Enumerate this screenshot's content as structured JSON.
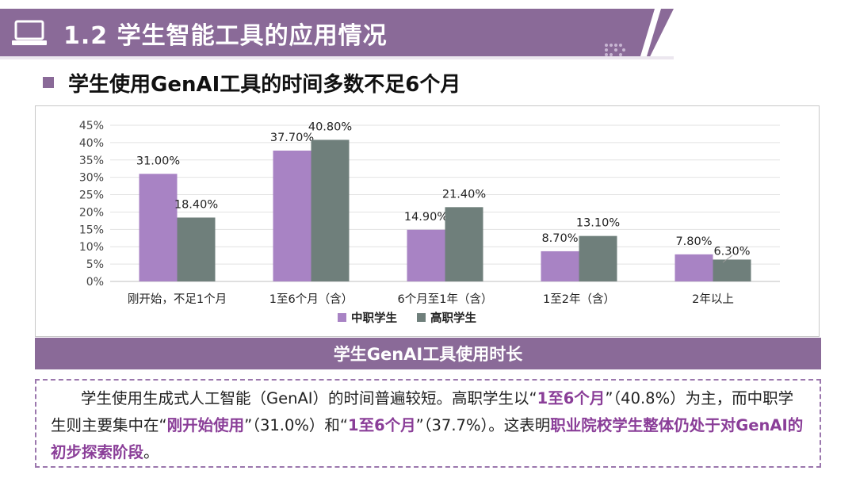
{
  "header": {
    "title": "1.2 学生智能工具的应用情况"
  },
  "section": {
    "title": "学生使用GenAI工具的时间多数不足6个月"
  },
  "caption": "学生GenAI工具使用时长",
  "description": {
    "p1": "学生使用生成式人工智能（GenAI）的时间普遍较短。高职学生以“",
    "e1": "1至6个月",
    "p2": "”（40.8%）为主，而中职学生则主要集中在“",
    "e2": "刚开始使用",
    "p3": "”（31.0%）和“",
    "e3": "1至6个月",
    "p4": "”（37.7%）。这表明",
    "e4": "职业院校学生整体仍处于对GenAI的初步探索阶段",
    "p5": "。"
  },
  "colors": {
    "accent": "#8a6a98",
    "series1": "#a883c4",
    "series2": "#6f7f7b"
  },
  "chart_data": {
    "type": "bar",
    "categories": [
      "刚开始，不足1个月",
      "1至6个月（含）",
      "6个月至1年（含）",
      "1至2年（含）",
      "2年以上"
    ],
    "series": [
      {
        "name": "中职学生",
        "values": [
          31.0,
          37.7,
          14.9,
          8.7,
          7.8
        ],
        "labels": [
          "31.00%",
          "37.70%",
          "14.90%",
          "8.70%",
          "7.80%"
        ]
      },
      {
        "name": "高职学生",
        "values": [
          18.4,
          40.8,
          21.4,
          13.1,
          6.3
        ],
        "labels": [
          "18.40%",
          "40.80%",
          "21.40%",
          "13.10%",
          "6.30%"
        ]
      }
    ],
    "yticks": [
      "0%",
      "5%",
      "10%",
      "15%",
      "20%",
      "25%",
      "30%",
      "35%",
      "40%",
      "45%"
    ],
    "ylim": [
      0,
      45
    ],
    "title": "学生GenAI工具使用时长",
    "legend": "bottom-center",
    "grid": true
  }
}
